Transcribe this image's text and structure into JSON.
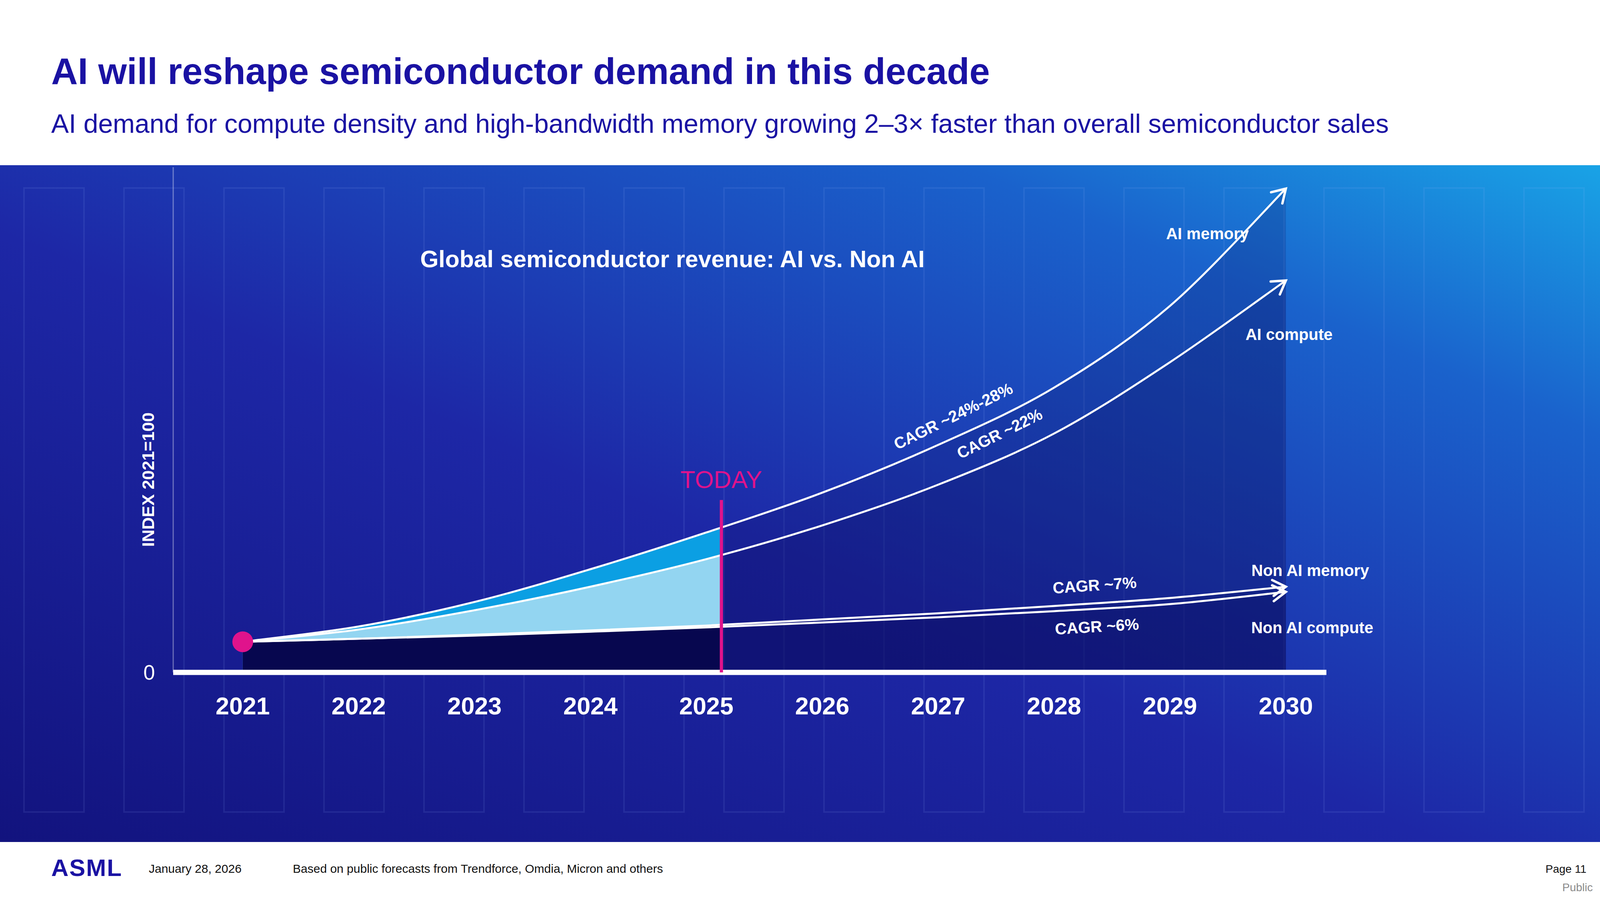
{
  "header": {
    "title": "AI will reshape semiconductor demand in this decade",
    "subtitle": "AI demand for compute density and high-bandwidth memory growing 2–3× faster than overall semiconductor sales"
  },
  "chart_data": {
    "type": "area",
    "title": "Global semiconductor revenue: AI vs. Non AI",
    "y_label": "INDEX 2021=100",
    "x": [
      2021,
      2022,
      2023,
      2024,
      2025,
      2026,
      2027,
      2028,
      2029,
      2030
    ],
    "xlim": [
      2020.4,
      2030.35
    ],
    "xticks": [
      2021,
      2022,
      2023,
      2024,
      2025,
      2026,
      2027,
      2028,
      2029,
      2030
    ],
    "ylim": [
      0,
      1650
    ],
    "yticks": [
      0
    ],
    "grid": false,
    "series": [
      {
        "name": "AI memory",
        "color": "#0b9fe3",
        "values": [
          100,
          150,
          230,
          337,
          457,
          587,
          743,
          930,
          1197,
          1580
        ]
      },
      {
        "name": "AI compute",
        "color": "#93d5f1",
        "values": [
          100,
          140,
          203,
          280,
          370,
          480,
          613,
          780,
          1013,
          1280
        ]
      },
      {
        "name": "Non AI memory",
        "color": "#0c0f66",
        "values": [
          100,
          110,
          123,
          137,
          153,
          173,
          193,
          217,
          243,
          280
        ]
      },
      {
        "name": "Non AI compute",
        "color": "#07074f",
        "values": [
          100,
          110,
          120,
          133,
          147,
          163,
          180,
          200,
          223,
          263
        ]
      }
    ],
    "annotations": [
      {
        "text": "CAGR ~24%-28%",
        "x": 2027.13,
        "y": 837
      },
      {
        "text": "CAGR ~22%",
        "x": 2027.53,
        "y": 780
      },
      {
        "text": "CAGR ~7%",
        "x": 2028.35,
        "y": 285
      },
      {
        "text": "CAGR ~6%",
        "x": 2028.37,
        "y": 150
      }
    ],
    "today": {
      "text": "TODAY",
      "x": 2025.13,
      "y": 563
    }
  },
  "footer": {
    "logo": "ASML",
    "date": "January 28, 2026",
    "source": "Based on public forecasts from Trendforce, Omdia, Micron and others",
    "page": "Page 11",
    "classification": "Public"
  }
}
